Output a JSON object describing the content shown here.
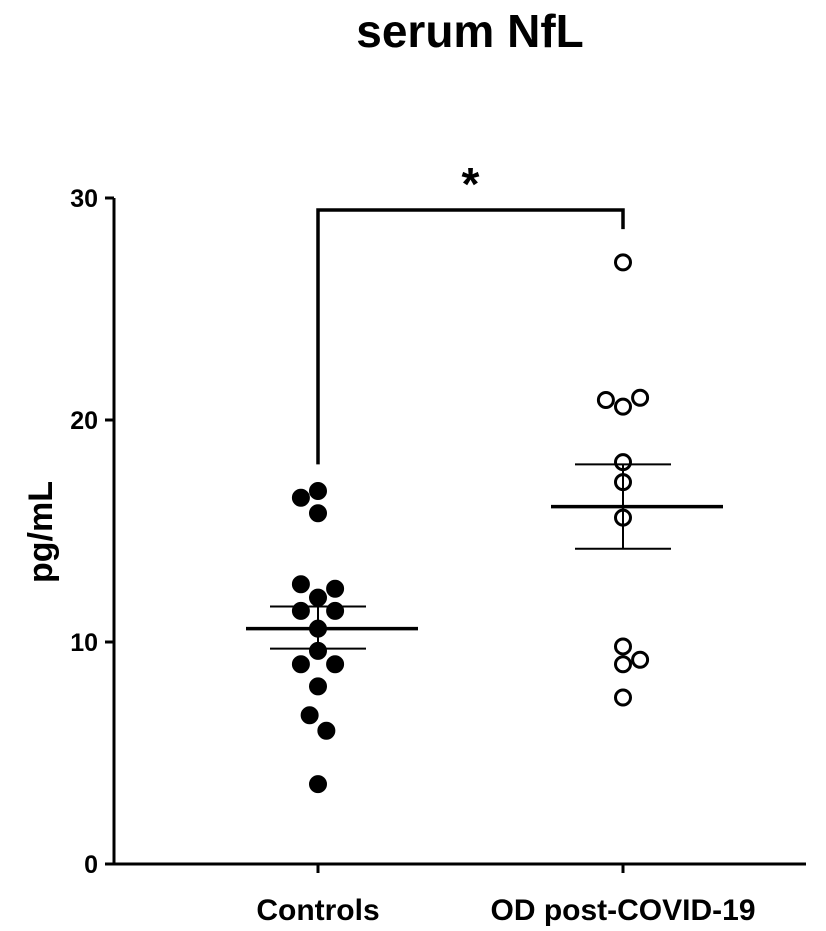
{
  "chart_data": {
    "type": "scatter",
    "title": "serum NfL",
    "ylabel": "pg/mL",
    "xlabel": "",
    "ylim": [
      0,
      30
    ],
    "yticks": [
      0,
      10,
      20,
      30
    ],
    "categories": [
      "Controls",
      "OD post-COVID-19"
    ],
    "groups": [
      {
        "category": "Controls",
        "marker": "filled",
        "points": [
          {
            "offset": -0.45,
            "y": 16.5
          },
          {
            "offset": 0.0,
            "y": 16.8
          },
          {
            "offset": 0.0,
            "y": 15.8
          },
          {
            "offset": -0.45,
            "y": 12.6
          },
          {
            "offset": 0.45,
            "y": 12.4
          },
          {
            "offset": 0.0,
            "y": 12.0
          },
          {
            "offset": -0.45,
            "y": 11.4
          },
          {
            "offset": 0.45,
            "y": 11.4
          },
          {
            "offset": 0.0,
            "y": 10.6
          },
          {
            "offset": 0.0,
            "y": 9.6
          },
          {
            "offset": -0.45,
            "y": 9.0
          },
          {
            "offset": 0.45,
            "y": 9.0
          },
          {
            "offset": 0.0,
            "y": 8.0
          },
          {
            "offset": -0.22,
            "y": 6.7
          },
          {
            "offset": 0.22,
            "y": 6.0
          },
          {
            "offset": 0.0,
            "y": 3.6
          }
        ],
        "mean": 10.6,
        "sem_low": 9.7,
        "sem_high": 11.6
      },
      {
        "category": "OD post-COVID-19",
        "marker": "open",
        "points": [
          {
            "offset": 0.0,
            "y": 27.1
          },
          {
            "offset": -0.45,
            "y": 20.9
          },
          {
            "offset": 0.45,
            "y": 21.0
          },
          {
            "offset": 0.0,
            "y": 20.6
          },
          {
            "offset": 0.0,
            "y": 18.1
          },
          {
            "offset": 0.0,
            "y": 17.2
          },
          {
            "offset": 0.0,
            "y": 15.6
          },
          {
            "offset": 0.0,
            "y": 9.8
          },
          {
            "offset": 0.0,
            "y": 9.0
          },
          {
            "offset": 0.45,
            "y": 9.2
          },
          {
            "offset": 0.0,
            "y": 7.5
          }
        ],
        "mean": 16.1,
        "sem_low": 14.2,
        "sem_high": 18.0
      }
    ],
    "significance": {
      "label": "*",
      "from": 0,
      "to": 1
    }
  }
}
